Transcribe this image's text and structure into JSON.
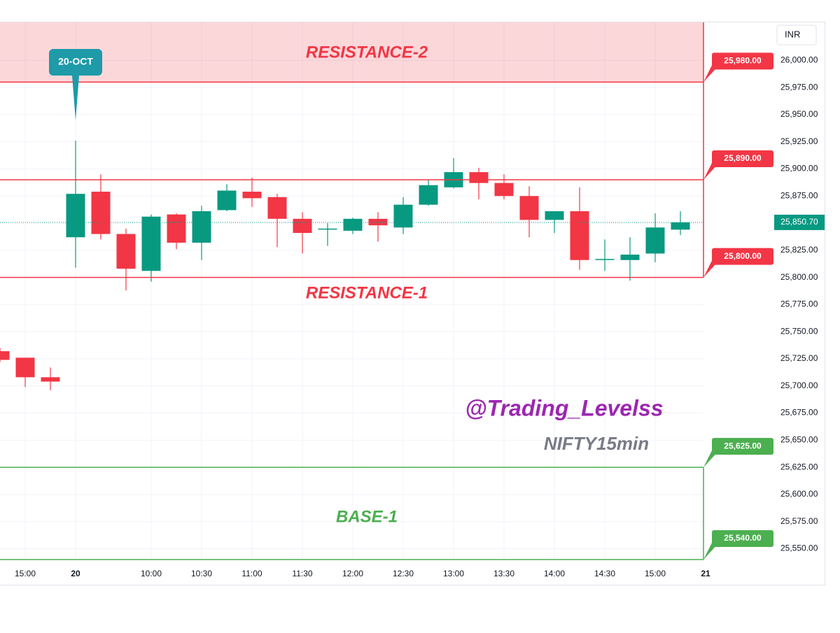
{
  "chart_data": {
    "type": "candlestick",
    "currency": "INR",
    "categories": [
      null,
      "15:00",
      null,
      "20",
      null,
      null,
      "10:00",
      null,
      "10:30",
      null,
      "11:00",
      null,
      "11:30",
      null,
      "12:00",
      null,
      "12:30",
      null,
      "13:00",
      null,
      "13:30",
      null,
      "14:00",
      null,
      "14:30",
      null,
      "15:00",
      null,
      "21"
    ],
    "open": [
      25732,
      25726,
      25708,
      25837,
      25879,
      25840,
      25806,
      25858,
      25832,
      25862,
      25879,
      25874,
      25854,
      25844,
      25843,
      25854,
      25846,
      25867,
      25883,
      25897,
      25887,
      25875,
      25853,
      25861,
      25816,
      25816,
      25822,
      25844,
      null
    ],
    "high": [
      25735,
      25726,
      25717,
      25926,
      25895,
      25845,
      25858,
      25859,
      25866,
      25886,
      25892,
      25877,
      25860,
      25850,
      25855,
      25860,
      25874,
      25890,
      25910,
      25901,
      25895,
      25884,
      25861,
      25883,
      25835,
      25837,
      25859,
      25861,
      null
    ],
    "low": [
      25722,
      25699,
      25696,
      25809,
      25835,
      25788,
      25796,
      25826,
      25816,
      25861,
      25865,
      25828,
      25822,
      25829,
      25840,
      25833,
      25840,
      25866,
      25882,
      25872,
      25872,
      25837,
      25841,
      25807,
      25806,
      25797,
      25814,
      25839,
      null
    ],
    "close": [
      25724,
      25708,
      25704,
      25877,
      25840,
      25808,
      25856,
      25832,
      25861,
      25880,
      25873,
      25854,
      25841,
      25845,
      25854,
      25848,
      25867,
      25885,
      25897,
      25887,
      25875,
      25853,
      25861,
      25816,
      25817,
      25821,
      25846,
      25850.7,
      null
    ],
    "up_color": "#089981",
    "down_color": "#f23645",
    "ylim": [
      25540,
      26035
    ],
    "yticks": [
      {
        "value": 25550,
        "label": "25,550.00"
      },
      {
        "value": 25575,
        "label": "25,575.00"
      },
      {
        "value": 25600,
        "label": "25,600.00"
      },
      {
        "value": 25625,
        "label": "25,625.00"
      },
      {
        "value": 25650,
        "label": "25,650.00"
      },
      {
        "value": 25675,
        "label": "25,675.00"
      },
      {
        "value": 25700,
        "label": "25,700.00"
      },
      {
        "value": 25725,
        "label": "25,725.00"
      },
      {
        "value": 25750,
        "label": "25,750.00"
      },
      {
        "value": 25775,
        "label": "25,775.00"
      },
      {
        "value": 25800,
        "label": "25,800.00"
      },
      {
        "value": 25825,
        "label": "25,825.00"
      },
      {
        "value": 25850,
        "label": "25,850.00"
      },
      {
        "value": 25875,
        "label": "25,875.00"
      },
      {
        "value": 25900,
        "label": "25,900.00"
      },
      {
        "value": 25925,
        "label": "25,925.00"
      },
      {
        "value": 25950,
        "label": "25,950.00"
      },
      {
        "value": 25975,
        "label": "25,975.00"
      },
      {
        "value": 26000,
        "label": "26,000.00"
      }
    ],
    "grid": true,
    "last_price": {
      "value": 25850.7,
      "label": "25,850.70",
      "color": "#089981"
    },
    "levels": [
      {
        "value": 25980,
        "value_label": "25,980.00",
        "color": "#f23645",
        "fill_above": true
      },
      {
        "value": 25890,
        "value_label": "25,890.00",
        "color": "#f23645"
      },
      {
        "value": 25800,
        "value_label": "25,800.00",
        "color": "#f23645"
      },
      {
        "value": 25625,
        "value_label": "25,625.00",
        "color": "#4caf50"
      },
      {
        "value": 25540,
        "value_label": "25,540.00",
        "color": "#4caf50"
      }
    ],
    "annotations": [
      {
        "text": "RESISTANCE-2",
        "color": "#f23645"
      },
      {
        "text": "RESISTANCE-1",
        "color": "#f23645"
      },
      {
        "text": "BASE-1",
        "color": "#4caf50"
      },
      {
        "text": "@Trading_Levelss",
        "color": "#9c27b0"
      },
      {
        "text": "NIFTY15min",
        "color": "#787b86"
      }
    ],
    "callout": {
      "text": "20-OCT",
      "color": "#1e9aa8"
    }
  }
}
